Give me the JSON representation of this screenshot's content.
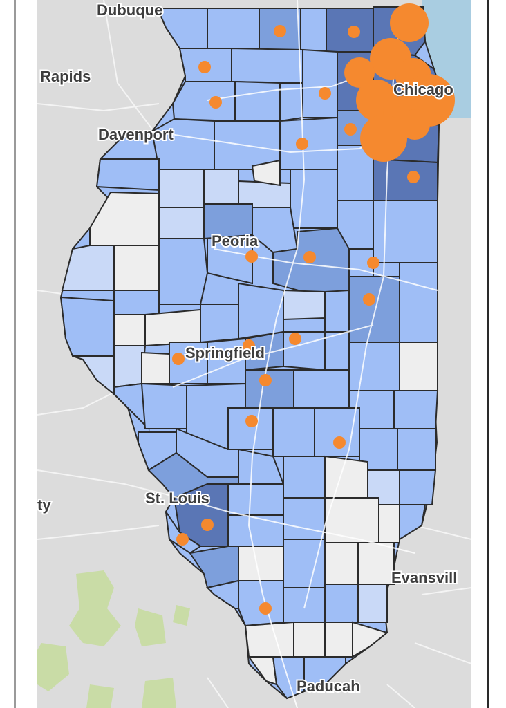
{
  "map": {
    "cities": [
      {
        "name": "Dubuque",
        "label": "Dubuque"
      },
      {
        "name": "Rapids",
        "label": "Rapids"
      },
      {
        "name": "Chicago",
        "label": "Chicago"
      },
      {
        "name": "Davenport",
        "label": "Davenport"
      },
      {
        "name": "Peoria",
        "label": "Peoria"
      },
      {
        "name": "Springfield",
        "label": "Springfield"
      },
      {
        "name": "St. Louis",
        "label": "St. Louis"
      },
      {
        "name": "ty",
        "label": "ty"
      },
      {
        "name": "Evansville",
        "label": "Evansvill"
      },
      {
        "name": "Paducah",
        "label": "Paducah"
      }
    ],
    "colors": {
      "background": "#dcdcdc",
      "lake": "#a9cde1",
      "county_none": "#eeeeee",
      "county_low": "#c9d9f7",
      "county_mid": "#9fbef6",
      "county_high": "#7d9fdc",
      "county_max": "#5a76b5",
      "county_border": "#2b2b2b",
      "marker": "#f5892f",
      "park": "#c9dca6",
      "road": "#ffffff"
    }
  }
}
